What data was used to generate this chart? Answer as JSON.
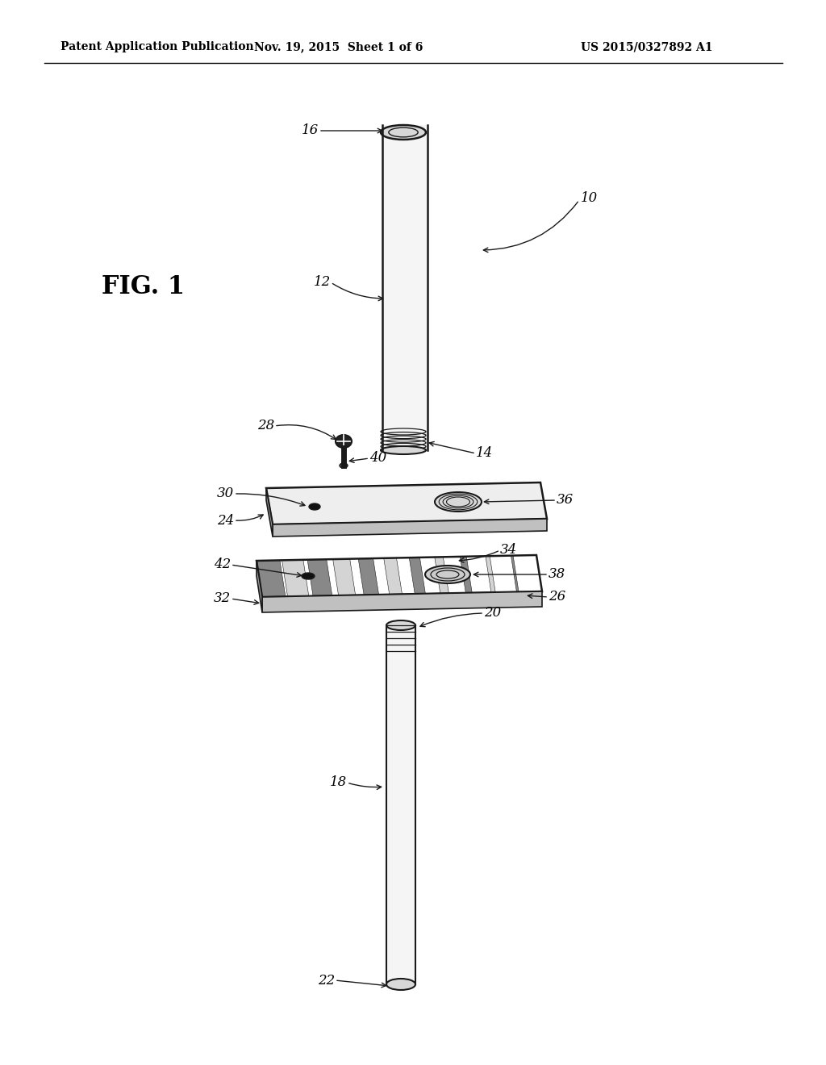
{
  "bg_color": "#ffffff",
  "header_left": "Patent Application Publication",
  "header_mid": "Nov. 19, 2015  Sheet 1 of 6",
  "header_right": "US 2015/0327892 A1",
  "fig_label": "FIG. 1",
  "title_font_size": 11,
  "fig_label_font_size": 22,
  "label_font_size": 12,
  "line_color": "#1a1a1a",
  "rod_fill": "#f5f5f5",
  "rod_shade": "#d8d8d8",
  "plate_fill": "#eeeeee",
  "plate_shade": "#c0c0c0",
  "plate_dark": "#a0a0a0",
  "groove_dark": "#888888",
  "groove_light": "#d4d4d4",
  "screw_dark": "#222222"
}
